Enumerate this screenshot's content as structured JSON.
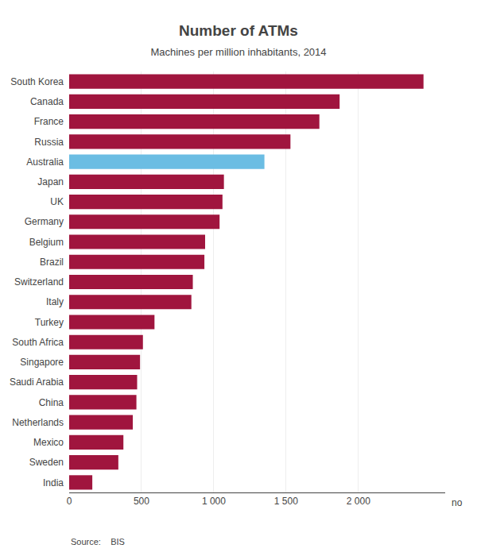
{
  "chart_data": {
    "type": "bar",
    "orientation": "horizontal",
    "title": "Number of ATMs",
    "subtitle": "Machines per million inhabitants, 2014",
    "source": "Source:    BIS",
    "categories": [
      "South Korea",
      "Canada",
      "France",
      "Russia",
      "Australia",
      "Japan",
      "UK",
      "Germany",
      "Belgium",
      "Brazil",
      "Switzerland",
      "Italy",
      "Turkey",
      "South Africa",
      "Singapore",
      "Saudi Arabia",
      "China",
      "Netherlands",
      "Mexico",
      "Sweden",
      "India"
    ],
    "values": [
      2450,
      1870,
      1730,
      1530,
      1350,
      1070,
      1060,
      1040,
      940,
      935,
      855,
      845,
      590,
      510,
      490,
      470,
      465,
      440,
      375,
      340,
      160
    ],
    "colors": [
      "#A0153E",
      "#A0153E",
      "#A0153E",
      "#A0153E",
      "#6BBDE3",
      "#A0153E",
      "#A0153E",
      "#A0153E",
      "#A0153E",
      "#A0153E",
      "#A0153E",
      "#A0153E",
      "#A0153E",
      "#A0153E",
      "#A0153E",
      "#A0153E",
      "#A0153E",
      "#A0153E",
      "#A0153E",
      "#A0153E",
      "#A0153E"
    ],
    "xlim": [
      0,
      2600
    ],
    "xticks": [
      0,
      500,
      {
        "value": 1000,
        "label": "1 000"
      },
      {
        "value": 1500,
        "label": "1 500"
      },
      {
        "value": 2000,
        "label": "2 000"
      }
    ],
    "annotations": [
      "no"
    ],
    "grid": true
  }
}
